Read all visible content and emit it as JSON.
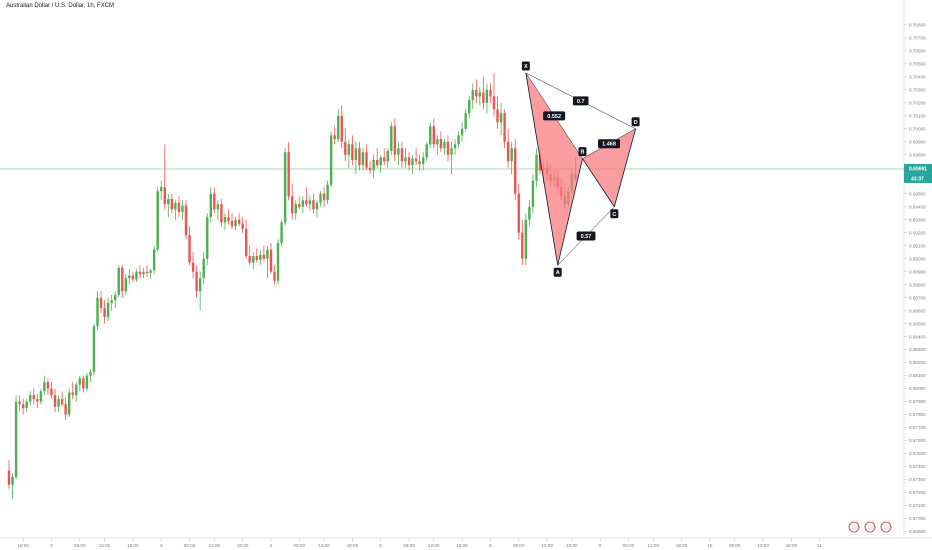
{
  "header": {
    "title": "Australian Dollar / U.S. Dollar, 1h, FXCM"
  },
  "colors": {
    "up": "#26a69a",
    "up_candle": "#4caf50",
    "down": "#ef5350",
    "pattern_fill": "#f77c80",
    "pattern_line": "#131722",
    "current_price_line": "#a5d6a7",
    "axis_text": "#787b86"
  },
  "chart_data": {
    "type": "candlestick",
    "symbol": "AUDUSD",
    "interval": "1h",
    "ylim": [
      0.6685,
      0.7093
    ],
    "y_ticks": [
      "0.70800",
      "0.70700",
      "0.70600",
      "0.70500",
      "0.70400",
      "0.70300",
      "0.70200",
      "0.70100",
      "0.70000",
      "0.69900",
      "0.69800",
      "0.69700",
      "0.69600",
      "0.69500",
      "0.69400",
      "0.69300",
      "0.69200",
      "0.69100",
      "0.69000",
      "0.68900",
      "0.68800",
      "0.68700",
      "0.68600",
      "0.68500",
      "0.68400",
      "0.68300",
      "0.68200",
      "0.68100",
      "0.68000",
      "0.67900",
      "0.67800",
      "0.67700",
      "0.67600",
      "0.67500",
      "0.67400",
      "0.67300",
      "0.67200",
      "0.67100",
      "0.67000",
      "0.66900"
    ],
    "x_ticks": [
      {
        "label": "18:00",
        "i": 4
      },
      {
        "label": "2",
        "i": 12
      },
      {
        "label": "06:00",
        "i": 20
      },
      {
        "label": "12:00",
        "i": 27
      },
      {
        "label": "18:00",
        "i": 35
      },
      {
        "label": "3",
        "i": 43
      },
      {
        "label": "06:00",
        "i": 51
      },
      {
        "label": "12:00",
        "i": 58
      },
      {
        "label": "18:00",
        "i": 66
      },
      {
        "label": "4",
        "i": 74
      },
      {
        "label": "06:00",
        "i": 82
      },
      {
        "label": "12:00",
        "i": 89
      },
      {
        "label": "18:00",
        "i": 97
      },
      {
        "label": "5",
        "i": 105
      },
      {
        "label": "06:00",
        "i": 113
      },
      {
        "label": "12:00",
        "i": 120
      },
      {
        "label": "18:00",
        "i": 128
      },
      {
        "label": "8",
        "i": 136
      },
      {
        "label": "06:00",
        "i": 144
      },
      {
        "label": "12:00",
        "i": 152
      },
      {
        "label": "18:00",
        "i": 159
      },
      {
        "label": "9",
        "i": 167
      },
      {
        "label": "06:00",
        "i": 175
      },
      {
        "label": "12:00",
        "i": 182
      },
      {
        "label": "18:00",
        "i": 190
      },
      {
        "label": "10",
        "i": 198
      },
      {
        "label": "06:00",
        "i": 205
      },
      {
        "label": "12:00",
        "i": 213
      },
      {
        "label": "18:00",
        "i": 221
      },
      {
        "label": "11",
        "i": 229
      }
    ],
    "candles": [
      [
        0.6737,
        0.6745,
        0.6723,
        0.6726
      ],
      [
        0.6726,
        0.6735,
        0.6715,
        0.6732
      ],
      [
        0.6732,
        0.6795,
        0.673,
        0.679
      ],
      [
        0.679,
        0.6795,
        0.6783,
        0.6788
      ],
      [
        0.6788,
        0.6792,
        0.678,
        0.6785
      ],
      [
        0.6785,
        0.6792,
        0.6782,
        0.679
      ],
      [
        0.679,
        0.6798,
        0.6787,
        0.6795
      ],
      [
        0.6795,
        0.68,
        0.6788,
        0.6792
      ],
      [
        0.6792,
        0.6796,
        0.6785,
        0.679
      ],
      [
        0.679,
        0.68,
        0.6788,
        0.6798
      ],
      [
        0.6798,
        0.681,
        0.6795,
        0.6805
      ],
      [
        0.6805,
        0.6808,
        0.6795,
        0.68
      ],
      [
        0.68,
        0.6805,
        0.6792,
        0.6795
      ],
      [
        0.6795,
        0.68,
        0.6782,
        0.6786
      ],
      [
        0.6786,
        0.6795,
        0.6782,
        0.6792
      ],
      [
        0.6792,
        0.6798,
        0.6786,
        0.6788
      ],
      [
        0.6788,
        0.6793,
        0.6776,
        0.678
      ],
      [
        0.678,
        0.68,
        0.6778,
        0.6797
      ],
      [
        0.6797,
        0.6805,
        0.6792,
        0.6795
      ],
      [
        0.6795,
        0.6805,
        0.679,
        0.6803
      ],
      [
        0.6803,
        0.681,
        0.6798,
        0.6808
      ],
      [
        0.6808,
        0.681,
        0.6797,
        0.68
      ],
      [
        0.68,
        0.6812,
        0.6798,
        0.681
      ],
      [
        0.681,
        0.6815,
        0.6805,
        0.6813
      ],
      [
        0.6813,
        0.685,
        0.681,
        0.6848
      ],
      [
        0.6848,
        0.6875,
        0.6845,
        0.687
      ],
      [
        0.687,
        0.6875,
        0.6858,
        0.6862
      ],
      [
        0.6862,
        0.6868,
        0.685,
        0.6855
      ],
      [
        0.6855,
        0.687,
        0.6852,
        0.6866
      ],
      [
        0.6866,
        0.6872,
        0.686,
        0.6868
      ],
      [
        0.6868,
        0.6875,
        0.6862,
        0.6872
      ],
      [
        0.6872,
        0.6895,
        0.687,
        0.6893
      ],
      [
        0.6893,
        0.6895,
        0.687,
        0.6875
      ],
      [
        0.6875,
        0.6888,
        0.6872,
        0.6885
      ],
      [
        0.6885,
        0.6892,
        0.688,
        0.6887
      ],
      [
        0.6887,
        0.689,
        0.6882,
        0.6884
      ],
      [
        0.6884,
        0.6892,
        0.6882,
        0.689
      ],
      [
        0.689,
        0.6895,
        0.6885,
        0.6888
      ],
      [
        0.6888,
        0.6893,
        0.6885,
        0.689
      ],
      [
        0.689,
        0.6895,
        0.6886,
        0.6889
      ],
      [
        0.6889,
        0.6892,
        0.6885,
        0.6891
      ],
      [
        0.6891,
        0.691,
        0.6888,
        0.6907
      ],
      [
        0.6907,
        0.6955,
        0.6905,
        0.6952
      ],
      [
        0.6952,
        0.696,
        0.6945,
        0.6955
      ],
      [
        0.6955,
        0.6988,
        0.6938,
        0.6942
      ],
      [
        0.6942,
        0.695,
        0.6932,
        0.6946
      ],
      [
        0.6946,
        0.695,
        0.6935,
        0.6938
      ],
      [
        0.6938,
        0.6945,
        0.693,
        0.6943
      ],
      [
        0.6943,
        0.6948,
        0.6932,
        0.6936
      ],
      [
        0.6936,
        0.6945,
        0.693,
        0.6941
      ],
      [
        0.6941,
        0.6945,
        0.6915,
        0.6918
      ],
      [
        0.6918,
        0.6925,
        0.6895,
        0.6897
      ],
      [
        0.6897,
        0.6905,
        0.6885,
        0.689
      ],
      [
        0.689,
        0.6895,
        0.687,
        0.6875
      ],
      [
        0.6875,
        0.689,
        0.686,
        0.6885
      ],
      [
        0.6885,
        0.6905,
        0.688,
        0.69
      ],
      [
        0.69,
        0.6935,
        0.6895,
        0.6932
      ],
      [
        0.6932,
        0.6955,
        0.6928,
        0.695
      ],
      [
        0.695,
        0.6955,
        0.6935,
        0.6938
      ],
      [
        0.6938,
        0.6945,
        0.693,
        0.6942
      ],
      [
        0.6942,
        0.6946,
        0.6925,
        0.6928
      ],
      [
        0.6928,
        0.6935,
        0.6922,
        0.6932
      ],
      [
        0.6932,
        0.6938,
        0.6926,
        0.6929
      ],
      [
        0.6929,
        0.6935,
        0.6923,
        0.6925
      ],
      [
        0.6925,
        0.6932,
        0.6922,
        0.693
      ],
      [
        0.693,
        0.6935,
        0.6925,
        0.6927
      ],
      [
        0.6927,
        0.6932,
        0.692,
        0.6923
      ],
      [
        0.6923,
        0.693,
        0.69,
        0.6902
      ],
      [
        0.6902,
        0.691,
        0.6895,
        0.6897
      ],
      [
        0.6897,
        0.6905,
        0.6892,
        0.6902
      ],
      [
        0.6902,
        0.6908,
        0.6897,
        0.6899
      ],
      [
        0.6899,
        0.6906,
        0.6895,
        0.6903
      ],
      [
        0.6903,
        0.691,
        0.6898,
        0.69
      ],
      [
        0.69,
        0.691,
        0.6885,
        0.6907
      ],
      [
        0.6907,
        0.6912,
        0.6888,
        0.689
      ],
      [
        0.689,
        0.6895,
        0.688,
        0.6883
      ],
      [
        0.6883,
        0.6915,
        0.688,
        0.6912
      ],
      [
        0.6912,
        0.693,
        0.691,
        0.6928
      ],
      [
        0.6928,
        0.6985,
        0.6925,
        0.6982
      ],
      [
        0.6982,
        0.699,
        0.6945,
        0.6948
      ],
      [
        0.6948,
        0.6958,
        0.693,
        0.6935
      ],
      [
        0.6935,
        0.6945,
        0.693,
        0.6942
      ],
      [
        0.6942,
        0.6948,
        0.6938,
        0.694
      ],
      [
        0.694,
        0.6948,
        0.6935,
        0.6945
      ],
      [
        0.6945,
        0.6955,
        0.694,
        0.6942
      ],
      [
        0.6942,
        0.6948,
        0.6937,
        0.6945
      ],
      [
        0.6945,
        0.695,
        0.6935,
        0.6938
      ],
      [
        0.6938,
        0.6945,
        0.6932,
        0.6943
      ],
      [
        0.6943,
        0.6952,
        0.694,
        0.695
      ],
      [
        0.695,
        0.6955,
        0.694,
        0.6945
      ],
      [
        0.6945,
        0.696,
        0.6942,
        0.6957
      ],
      [
        0.6957,
        0.6998,
        0.6955,
        0.6995
      ],
      [
        0.6995,
        0.7002,
        0.6988,
        0.6992
      ],
      [
        0.6992,
        0.7015,
        0.699,
        0.701
      ],
      [
        0.701,
        0.7018,
        0.6985,
        0.699
      ],
      [
        0.699,
        0.7,
        0.6975,
        0.698
      ],
      [
        0.698,
        0.6992,
        0.697,
        0.6988
      ],
      [
        0.6988,
        0.6995,
        0.6972,
        0.6976
      ],
      [
        0.6976,
        0.699,
        0.6965,
        0.6985
      ],
      [
        0.6985,
        0.699,
        0.6968,
        0.6972
      ],
      [
        0.6972,
        0.6985,
        0.6968,
        0.6982
      ],
      [
        0.6982,
        0.6988,
        0.6968,
        0.697
      ],
      [
        0.697,
        0.6975,
        0.6965,
        0.6968
      ],
      [
        0.6968,
        0.698,
        0.6962,
        0.6976
      ],
      [
        0.6976,
        0.6985,
        0.697,
        0.6972
      ],
      [
        0.6972,
        0.698,
        0.6966,
        0.6978
      ],
      [
        0.6978,
        0.6985,
        0.6972,
        0.6975
      ],
      [
        0.6975,
        0.6985,
        0.697,
        0.6983
      ],
      [
        0.6983,
        0.7005,
        0.698,
        0.7002
      ],
      [
        0.7002,
        0.7008,
        0.6975,
        0.698
      ],
      [
        0.698,
        0.699,
        0.6972,
        0.6985
      ],
      [
        0.6985,
        0.699,
        0.697,
        0.6975
      ],
      [
        0.6975,
        0.6985,
        0.697,
        0.6978
      ],
      [
        0.6978,
        0.6982,
        0.6968,
        0.6972
      ],
      [
        0.6972,
        0.698,
        0.6965,
        0.6977
      ],
      [
        0.6977,
        0.6985,
        0.6972,
        0.6975
      ],
      [
        0.6975,
        0.698,
        0.6968,
        0.6973
      ],
      [
        0.6973,
        0.6982,
        0.6968,
        0.6978
      ],
      [
        0.6978,
        0.699,
        0.6975,
        0.6988
      ],
      [
        0.6988,
        0.7005,
        0.6985,
        0.7002
      ],
      [
        0.7002,
        0.7008,
        0.6985,
        0.6988
      ],
      [
        0.6988,
        0.6995,
        0.698,
        0.6992
      ],
      [
        0.6992,
        0.6998,
        0.6982,
        0.6985
      ],
      [
        0.6985,
        0.6992,
        0.698,
        0.699
      ],
      [
        0.699,
        0.6995,
        0.6975,
        0.698
      ],
      [
        0.698,
        0.699,
        0.6965,
        0.6985
      ],
      [
        0.6985,
        0.6992,
        0.698,
        0.6988
      ],
      [
        0.6988,
        0.6998,
        0.6985,
        0.6995
      ],
      [
        0.6995,
        0.7005,
        0.699,
        0.7
      ],
      [
        0.7,
        0.7015,
        0.6998,
        0.7012
      ],
      [
        0.7012,
        0.7025,
        0.7008,
        0.7022
      ],
      [
        0.7022,
        0.7035,
        0.7015,
        0.703
      ],
      [
        0.703,
        0.7038,
        0.702,
        0.7025
      ],
      [
        0.7025,
        0.7032,
        0.7018,
        0.7028
      ],
      [
        0.7028,
        0.704,
        0.7015,
        0.702
      ],
      [
        0.702,
        0.7035,
        0.7012,
        0.703
      ],
      [
        0.703,
        0.7035,
        0.702,
        0.7025
      ],
      [
        0.7025,
        0.7043,
        0.701,
        0.7015
      ],
      [
        0.7015,
        0.7025,
        0.7,
        0.7005
      ],
      [
        0.7005,
        0.702,
        0.6995,
        0.7012
      ],
      [
        0.7012,
        0.7015,
        0.6985,
        0.699
      ],
      [
        0.699,
        0.7,
        0.697,
        0.6975
      ],
      [
        0.6975,
        0.699,
        0.6965,
        0.6985
      ],
      [
        0.6985,
        0.6992,
        0.6945,
        0.695
      ],
      [
        0.695,
        0.6958,
        0.6915,
        0.692
      ],
      [
        0.692,
        0.693,
        0.6895,
        0.69
      ],
      [
        0.69,
        0.6935,
        0.6895,
        0.693
      ],
      [
        0.693,
        0.6945,
        0.6925,
        0.694
      ],
      [
        0.694,
        0.6965,
        0.6935,
        0.696
      ],
      [
        0.696,
        0.6985,
        0.6955,
        0.698
      ],
      [
        0.698,
        0.6985,
        0.6965,
        0.6968
      ],
      [
        0.6968,
        0.6975,
        0.6958,
        0.697
      ],
      [
        0.697,
        0.6975,
        0.696,
        0.6965
      ],
      [
        0.6965,
        0.6972,
        0.6955,
        0.696
      ],
      [
        0.696,
        0.6968,
        0.6955,
        0.6963
      ],
      [
        0.6963,
        0.6968,
        0.695,
        0.6955
      ],
      [
        0.6955,
        0.6962,
        0.6945,
        0.6948
      ],
      [
        0.6948,
        0.6955,
        0.6938,
        0.6942
      ],
      [
        0.6942,
        0.6955,
        0.694,
        0.6952
      ],
      [
        0.6952,
        0.6968,
        0.695,
        0.6965
      ],
      [
        0.6965,
        0.6978,
        0.696,
        0.6962
      ]
    ],
    "current_price": {
      "value": 0.69691,
      "label": "0.69691",
      "timer": "43:37"
    },
    "harmonic_pattern": {
      "points": [
        {
          "label": "X",
          "i": 146,
          "price": 0.7043
        },
        {
          "label": "A",
          "i": 155,
          "price": 0.6895
        },
        {
          "label": "B",
          "i": 162,
          "price": 0.6977
        },
        {
          "label": "C",
          "i": 171,
          "price": 0.694
        },
        {
          "label": "D",
          "i": 177,
          "price": 0.7
        }
      ],
      "ratios": [
        {
          "value": "0.552",
          "from": 0,
          "to": 2
        },
        {
          "value": "0.57",
          "from": 1,
          "to": 3
        },
        {
          "value": "0.7",
          "from": 0,
          "to": 4
        },
        {
          "value": "1.468",
          "from": 2,
          "to": 4
        }
      ]
    }
  }
}
